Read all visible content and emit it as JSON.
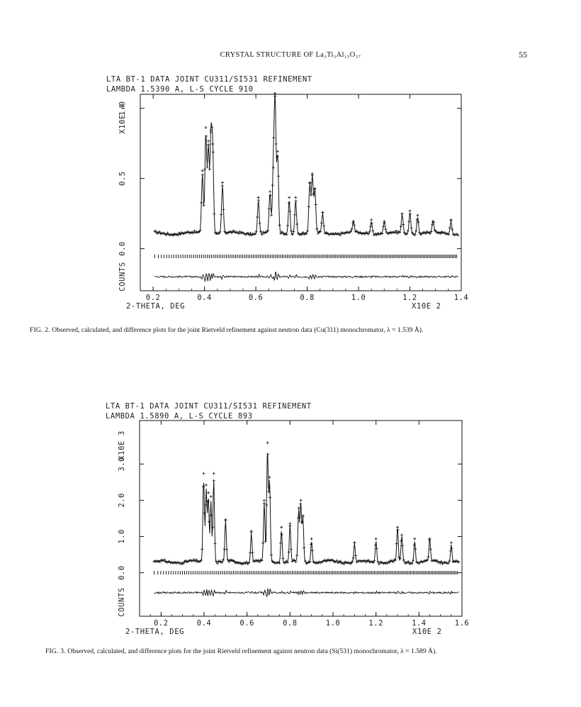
{
  "header": {
    "running_title": "CRYSTAL STRUCTURE OF La₃Ti₃Al₁₅O₃₇",
    "page_number": "55"
  },
  "chart_data": [
    {
      "type": "line",
      "title": "LTA BT-1 DATA JOINT CU311/SI531 REFINEMENT",
      "subtitle": "LAMBDA 1.5390 A, L-S CYCLE 910",
      "xlabel": "2-THETA, DEG",
      "x_multiplier": "X10E 2",
      "ylabel": "COUNTS",
      "y_multiplier": "X10E 4",
      "xlim": [
        0.15,
        1.4
      ],
      "ylim": [
        -0.3,
        1.1
      ],
      "x_ticks": [
        "0.2",
        "0.4",
        "0.6",
        "0.8",
        "1.0",
        "1.2",
        "1.4"
      ],
      "y_ticks": [
        "0.0",
        "0.5",
        "1.0"
      ],
      "baseline": 0.11,
      "reflection_row_y": -0.055,
      "difference_row_y": -0.2,
      "peaks": [
        {
          "x": 0.392,
          "h": 0.42
        },
        {
          "x": 0.405,
          "h": 0.71
        },
        {
          "x": 0.415,
          "h": 0.62
        },
        {
          "x": 0.425,
          "h": 0.68
        },
        {
          "x": 0.432,
          "h": 0.6
        },
        {
          "x": 0.47,
          "h": 0.34
        },
        {
          "x": 0.61,
          "h": 0.24
        },
        {
          "x": 0.655,
          "h": 0.28
        },
        {
          "x": 0.668,
          "h": 0.44
        },
        {
          "x": 0.675,
          "h": 0.92
        },
        {
          "x": 0.685,
          "h": 0.55
        },
        {
          "x": 0.73,
          "h": 0.24
        },
        {
          "x": 0.755,
          "h": 0.24
        },
        {
          "x": 0.81,
          "h": 0.34
        },
        {
          "x": 0.82,
          "h": 0.4
        },
        {
          "x": 0.83,
          "h": 0.3
        },
        {
          "x": 0.86,
          "h": 0.14
        },
        {
          "x": 0.98,
          "h": 0.08
        },
        {
          "x": 1.05,
          "h": 0.09
        },
        {
          "x": 1.1,
          "h": 0.08
        },
        {
          "x": 1.17,
          "h": 0.13
        },
        {
          "x": 1.2,
          "h": 0.15
        },
        {
          "x": 1.23,
          "h": 0.12
        },
        {
          "x": 1.29,
          "h": 0.08
        },
        {
          "x": 1.36,
          "h": 0.09
        }
      ]
    },
    {
      "type": "line",
      "title": "LTA BT-1 DATA JOINT CU311/SI531 REFINEMENT",
      "subtitle": "LAMBDA 1.5890 A, L-S CYCLE 893",
      "xlabel": "2-THETA, DEG",
      "x_multiplier": "X10E 2",
      "ylabel": "COUNTS",
      "y_multiplier": "X10E 3",
      "xlim": [
        0.1,
        1.6
      ],
      "ylim": [
        -1.2,
        4.2
      ],
      "x_ticks": [
        "0.2",
        "0.4",
        "0.6",
        "0.8",
        "1.0",
        "1.2",
        "1.4",
        "1.6"
      ],
      "y_ticks": [
        "0.0",
        "1.0",
        "2.0",
        "3.0"
      ],
      "baseline": 0.3,
      "reflection_row_y": 0.0,
      "difference_row_y": -0.55,
      "peaks": [
        {
          "x": 0.398,
          "h": 2.3
        },
        {
          "x": 0.41,
          "h": 2.0
        },
        {
          "x": 0.42,
          "h": 1.8
        },
        {
          "x": 0.432,
          "h": 1.7
        },
        {
          "x": 0.445,
          "h": 2.3
        },
        {
          "x": 0.5,
          "h": 1.1
        },
        {
          "x": 0.62,
          "h": 0.8
        },
        {
          "x": 0.68,
          "h": 1.6
        },
        {
          "x": 0.695,
          "h": 3.1
        },
        {
          "x": 0.705,
          "h": 2.2
        },
        {
          "x": 0.76,
          "h": 0.9
        },
        {
          "x": 0.8,
          "h": 1.0
        },
        {
          "x": 0.84,
          "h": 1.4
        },
        {
          "x": 0.85,
          "h": 1.6
        },
        {
          "x": 0.86,
          "h": 1.2
        },
        {
          "x": 0.9,
          "h": 0.6
        },
        {
          "x": 1.1,
          "h": 0.5
        },
        {
          "x": 1.2,
          "h": 0.6
        },
        {
          "x": 1.3,
          "h": 0.9
        },
        {
          "x": 1.32,
          "h": 0.7
        },
        {
          "x": 1.38,
          "h": 0.6
        },
        {
          "x": 1.45,
          "h": 0.6
        },
        {
          "x": 1.55,
          "h": 0.5
        }
      ]
    }
  ],
  "captions": {
    "fig2_label": "FIG. 2.",
    "fig2_text": "Observed, calculated, and difference plots for the joint Rietveld refinement against neutron data (Cu(311) monochromator, λ = 1.539 Å).",
    "fig3_label": "FIG. 3.",
    "fig3_text": "Observed, calculated, and difference plots for the joint Rietveld refinement against neutron data (Si(531) monochromator, λ = 1.589 Å)."
  }
}
